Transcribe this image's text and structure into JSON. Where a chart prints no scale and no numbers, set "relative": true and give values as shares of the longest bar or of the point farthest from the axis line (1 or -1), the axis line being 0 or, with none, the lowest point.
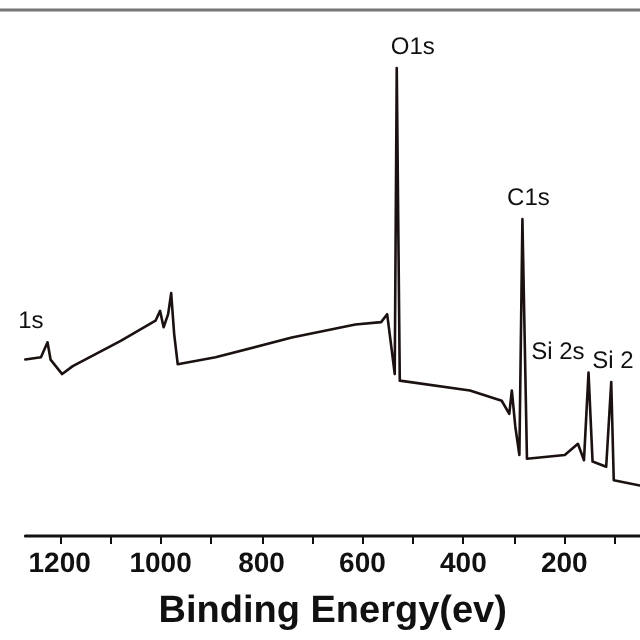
{
  "chart_data": {
    "type": "line",
    "relative": true,
    "xlabel": "Binding Energy(ev)",
    "xlim": [
      1268,
      50
    ],
    "xticks": [
      1200,
      {
        "value": 1100,
        "label": null
      },
      1000,
      {
        "value": 900,
        "label": null
      },
      800,
      {
        "value": 700,
        "label": null
      },
      600,
      {
        "value": 500,
        "label": null
      },
      400,
      {
        "value": 300,
        "label": null
      },
      200,
      {
        "value": 100,
        "label": null
      }
    ],
    "x": [
      1268,
      1237,
      1224,
      1218,
      1195,
      1174,
      1079,
      1010,
      1001,
      994,
      985,
      979,
      973,
      966,
      891,
      740,
      614,
      563,
      551,
      541,
      536,
      532,
      526,
      387,
      324,
      309,
      304,
      297,
      289,
      283,
      274,
      199,
      173,
      161,
      152,
      144,
      117,
      107,
      102,
      50
    ],
    "series": [
      {
        "color": "#1a1110",
        "values": [
          0.377,
          0.382,
          0.414,
          0.377,
          0.346,
          0.363,
          0.417,
          0.46,
          0.481,
          0.446,
          0.474,
          0.519,
          0.431,
          0.367,
          0.382,
          0.424,
          0.452,
          0.457,
          0.474,
          0.389,
          0.346,
          1.0,
          0.332,
          0.311,
          0.289,
          0.261,
          0.311,
          0.233,
          0.173,
          0.677,
          0.165,
          0.173,
          0.197,
          0.162,
          0.349,
          0.159,
          0.148,
          0.329,
          0.119,
          0.108
        ]
      }
    ],
    "annotations": [
      {
        "text": "1s",
        "x": 1224,
        "y": 0.414
      },
      {
        "text": "O1s",
        "x": 532,
        "y": 1.0
      },
      {
        "text": "C1s",
        "x": 283,
        "y": 0.677
      },
      {
        "text": "Si 2s",
        "x": 152,
        "y": 0.349
      },
      {
        "text": "Si 2",
        "x": 107,
        "y": 0.329
      }
    ],
    "grid": false,
    "marker": "none",
    "line_style": "solid"
  }
}
